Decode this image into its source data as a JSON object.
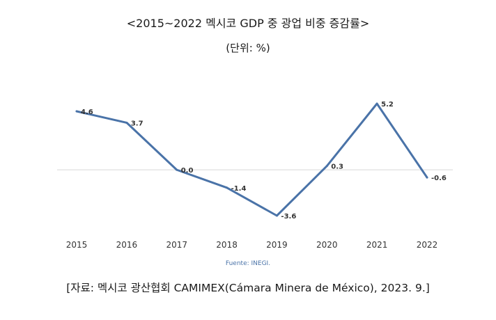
{
  "title": "<2015~2022 멕시코 GDP 중 광업 비중 증감률>",
  "subtitle": "(단위: %)",
  "source_note": "Fuente: INEGI.",
  "footer": "[자료: 멕시코 광산협회 CAMIMEX(Cámara Minera de México), 2023. 9.]",
  "colors": {
    "line": "#4a73a8",
    "baseline": "#d6d6d6",
    "text": "#222222"
  },
  "chart_data": {
    "type": "line",
    "x": [
      "2015",
      "2016",
      "2017",
      "2018",
      "2019",
      "2020",
      "2021",
      "2022"
    ],
    "y": [
      4.6,
      3.7,
      0.0,
      -1.4,
      -3.6,
      0.3,
      5.2,
      -0.6
    ],
    "data_labels": [
      "4.6",
      "3.7",
      "0.0",
      "-1.4",
      "-3.6",
      "0.3",
      "5.2",
      "-0.6"
    ],
    "ylim": [
      -3.6,
      5.2
    ],
    "grid": false,
    "baseline_at_zero": true,
    "legend": "none"
  }
}
